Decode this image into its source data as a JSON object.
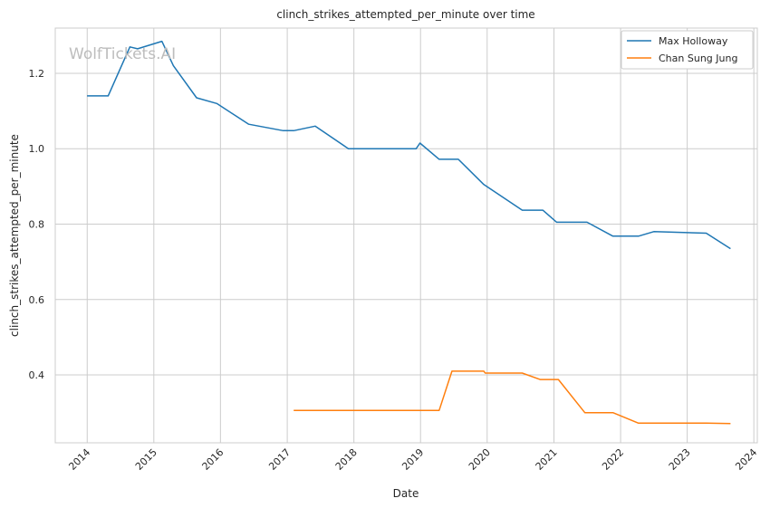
{
  "chart_data": {
    "type": "line",
    "title": "clinch_strikes_attempted_per_minute over time",
    "xlabel": "Date",
    "ylabel": "clinch_strikes_attempted_per_minute",
    "watermark": "WolfTickets.AI",
    "x_ticks": [
      "2014",
      "2015",
      "2016",
      "2017",
      "2018",
      "2019",
      "2020",
      "2021",
      "2022",
      "2023",
      "2024"
    ],
    "y_ticks": [
      "0.4",
      "0.6",
      "0.8",
      "1.0",
      "1.2"
    ],
    "xlim": [
      "2013-07-10",
      "2024-01-20"
    ],
    "ylim": [
      0.22,
      1.32
    ],
    "grid": true,
    "legend_position": "top-right",
    "series": [
      {
        "name": "Max Holloway",
        "color": "#1f77b4",
        "points": [
          [
            "2013-12-31",
            1.14
          ],
          [
            "2014-04-26",
            1.14
          ],
          [
            "2014-08-23",
            1.27
          ],
          [
            "2014-10-04",
            1.265
          ],
          [
            "2015-02-14",
            1.285
          ],
          [
            "2015-04-18",
            1.22
          ],
          [
            "2015-08-23",
            1.135
          ],
          [
            "2015-12-12",
            1.12
          ],
          [
            "2016-06-04",
            1.065
          ],
          [
            "2016-12-10",
            1.048
          ],
          [
            "2017-02-05",
            1.048
          ],
          [
            "2017-06-03",
            1.06
          ],
          [
            "2017-12-02",
            1.0
          ],
          [
            "2018-12-08",
            1.0
          ],
          [
            "2018-12-29",
            1.015
          ],
          [
            "2019-04-13",
            0.972
          ],
          [
            "2019-07-27",
            0.972
          ],
          [
            "2019-12-14",
            0.905
          ],
          [
            "2020-07-11",
            0.837
          ],
          [
            "2020-11-01",
            0.837
          ],
          [
            "2021-01-16",
            0.805
          ],
          [
            "2021-07-01",
            0.805
          ],
          [
            "2021-11-20",
            0.768
          ],
          [
            "2022-04-09",
            0.768
          ],
          [
            "2022-07-02",
            0.78
          ],
          [
            "2023-04-15",
            0.776
          ],
          [
            "2023-08-26",
            0.735
          ]
        ]
      },
      {
        "name": "Chan Sung Jung",
        "color": "#ff7f0e",
        "points": [
          [
            "2017-02-05",
            0.306
          ],
          [
            "2019-04-13",
            0.306
          ],
          [
            "2019-06-22",
            0.41
          ],
          [
            "2019-12-14",
            0.41
          ],
          [
            "2019-12-21",
            0.405
          ],
          [
            "2020-07-11",
            0.405
          ],
          [
            "2020-10-17",
            0.388
          ],
          [
            "2021-01-25",
            0.388
          ],
          [
            "2021-06-19",
            0.3
          ],
          [
            "2021-11-20",
            0.3
          ],
          [
            "2022-04-09",
            0.272
          ],
          [
            "2023-04-15",
            0.272
          ],
          [
            "2023-08-26",
            0.271
          ]
        ]
      }
    ]
  }
}
